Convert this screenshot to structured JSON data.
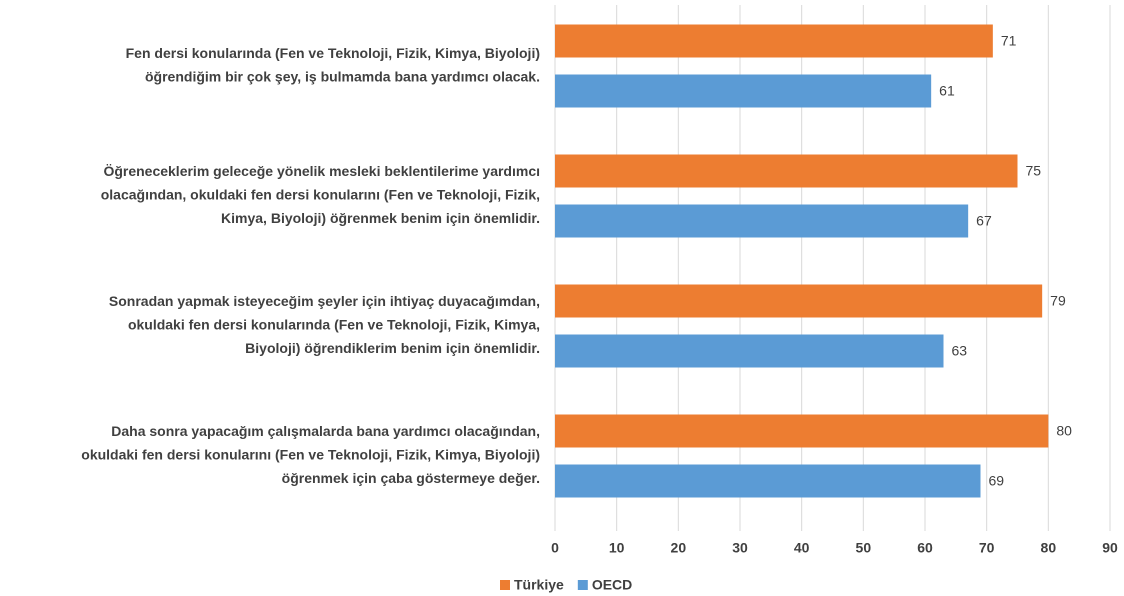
{
  "chart_data": {
    "type": "barh",
    "categories": [
      [
        "Fen dersi konularında (Fen ve Teknoloji, Fizik, Kimya, Biyoloji)",
        "öğrendiğim bir çok şey, iş bulmamda bana yardımcı olacak."
      ],
      [
        "Öğreneceklerim geleceğe yönelik mesleki beklentilerime yardımcı",
        "olacağından, okuldaki fen dersi konularını (Fen ve Teknoloji, Fizik,",
        "Kimya, Biyoloji) öğrenmek benim için önemlidir."
      ],
      [
        "Sonradan yapmak isteyeceğim şeyler için ihtiyaç duyacağımdan,",
        "okuldaki fen dersi konularında (Fen ve Teknoloji, Fizik, Kimya,",
        "Biyoloji) öğrendiklerim benim için önemlidir."
      ],
      [
        "Daha sonra yapacağım çalışmalarda bana yardımcı olacağından,",
        "okuldaki fen dersi konularını (Fen ve Teknoloji, Fizik, Kimya, Biyoloji)",
        "öğrenmek için çaba göstermeye değer."
      ]
    ],
    "series": [
      {
        "name": "Türkiye",
        "color": "#ed7d31",
        "values": [
          71,
          75,
          79,
          80
        ]
      },
      {
        "name": "OECD",
        "color": "#5b9bd5",
        "values": [
          61,
          67,
          63,
          69
        ]
      }
    ],
    "xlim": [
      0,
      90
    ],
    "xticks": [
      0,
      10,
      20,
      30,
      40,
      50,
      60,
      70,
      80,
      90
    ],
    "grid": true,
    "legend": "bottom"
  }
}
